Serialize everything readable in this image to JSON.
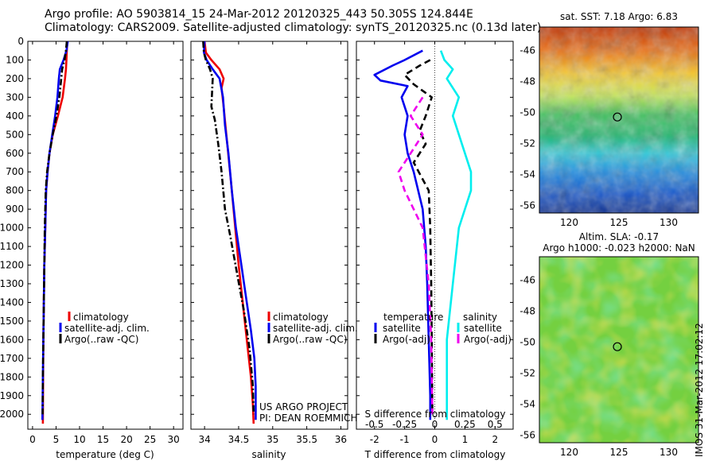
{
  "header": {
    "line1": "Argo profile: AO 5903814_15 24-Mar-2012 20120325_443 50.305S 124.844E",
    "line2": "Climatology: CARS2009. Satellite-adjusted climatology: synTS_20120325.nc (0.13d later)"
  },
  "colors": {
    "climatology": "#ee0000",
    "satellite": "#0000ee",
    "argo": "#000000",
    "sat_salinity": "#00eeee",
    "argo_salinity": "#ee00ee"
  },
  "chart_data": [
    {
      "type": "line",
      "panel": "temperature",
      "xlabel": "temperature (deg C)",
      "ylabel": "",
      "xlim": [
        -1,
        32
      ],
      "ylim": [
        2080,
        0
      ],
      "xticks": [
        "0",
        "5",
        "10",
        "15",
        "20",
        "25",
        "30"
      ],
      "yticks": [
        "0",
        "100",
        "200",
        "300",
        "400",
        "500",
        "600",
        "700",
        "800",
        "900",
        "1000",
        "1100",
        "1200",
        "1300",
        "1400",
        "1500",
        "1600",
        "1700",
        "1800",
        "1900",
        "2000"
      ],
      "legend": [
        "climatology",
        "satellite-adj. clim.",
        "Argo(..raw -QC)"
      ],
      "series": [
        {
          "name": "climatology",
          "style": "solid",
          "color": "#ee0000",
          "x": [
            7.4,
            7.3,
            7.2,
            7.1,
            6.9,
            6.4,
            5.4,
            4.3,
            3.6,
            3.2,
            2.9,
            2.7,
            2.5,
            2.4,
            2.3,
            2.25,
            2.2
          ],
          "y": [
            0,
            50,
            100,
            150,
            200,
            300,
            400,
            500,
            600,
            700,
            800,
            1000,
            1200,
            1400,
            1600,
            1800,
            2050
          ]
        },
        {
          "name": "satellite-adj. clim.",
          "style": "solid",
          "color": "#0000ee",
          "x": [
            7.5,
            7.2,
            6.6,
            5.8,
            5.6,
            5.3,
            4.8,
            4.2,
            3.6,
            3.2,
            2.9,
            2.7,
            2.5,
            2.4,
            2.3,
            2.2,
            2.1
          ],
          "y": [
            0,
            50,
            100,
            150,
            200,
            300,
            400,
            500,
            600,
            700,
            800,
            1000,
            1200,
            1400,
            1600,
            1800,
            2030
          ]
        },
        {
          "name": "Argo(..raw -QC)",
          "style": "dashdot",
          "color": "#000000",
          "x": [
            7.3,
            7.1,
            6.8,
            6.3,
            6.1,
            5.7,
            5.1,
            4.3,
            3.6,
            3.1,
            2.8,
            2.6,
            2.5,
            2.4,
            2.3,
            2.2,
            2.15
          ],
          "y": [
            0,
            50,
            100,
            150,
            200,
            300,
            400,
            500,
            600,
            700,
            800,
            1000,
            1200,
            1400,
            1600,
            1800,
            2000
          ]
        }
      ]
    },
    {
      "type": "line",
      "panel": "salinity",
      "xlabel": "salinity",
      "ylabel": "",
      "xlim": [
        33.8,
        36.1
      ],
      "ylim": [
        2080,
        0
      ],
      "xticks": [
        "34",
        "34.5",
        "35",
        "35.5",
        "36"
      ],
      "legend": [
        "climatology",
        "satellite-adj. clim.",
        "Argo(..raw -QC)"
      ],
      "annotation": [
        "US ARGO PROJECT",
        "PI: DEAN ROEMMICH"
      ],
      "series": [
        {
          "name": "climatology",
          "style": "solid",
          "color": "#ee0000",
          "x": [
            34.0,
            34.02,
            34.1,
            34.22,
            34.28,
            34.25,
            34.28,
            34.32,
            34.36,
            34.4,
            34.45,
            34.5,
            34.56,
            34.62,
            34.68,
            34.71,
            34.72
          ],
          "y": [
            0,
            60,
            100,
            150,
            200,
            250,
            350,
            500,
            650,
            800,
            1000,
            1200,
            1400,
            1600,
            1800,
            1950,
            2050
          ]
        },
        {
          "name": "satellite-adj. clim.",
          "style": "solid",
          "color": "#0000ee",
          "x": [
            34.0,
            33.99,
            34.03,
            34.12,
            34.22,
            34.27,
            34.3,
            34.35,
            34.4,
            34.46,
            34.54,
            34.62,
            34.68,
            34.73,
            34.75,
            34.75
          ],
          "y": [
            0,
            60,
            100,
            150,
            200,
            300,
            450,
            600,
            800,
            1000,
            1200,
            1400,
            1550,
            1700,
            1850,
            2030
          ]
        },
        {
          "name": "Argo(..raw -QC)",
          "style": "dashdot",
          "color": "#000000",
          "x": [
            33.98,
            33.99,
            34.02,
            34.08,
            34.12,
            34.1,
            34.15,
            34.2,
            34.25,
            34.3,
            34.38,
            34.48,
            34.58,
            34.66,
            34.71,
            34.72
          ],
          "y": [
            0,
            60,
            100,
            150,
            200,
            350,
            420,
            550,
            700,
            900,
            1050,
            1250,
            1450,
            1650,
            1850,
            2000
          ]
        }
      ]
    },
    {
      "type": "line",
      "panel": "difference",
      "xlabel": "T difference from climatology",
      "top_xlabel": "S difference from climatology",
      "xlim": [
        -2.6,
        2.6
      ],
      "ylim": [
        2080,
        0
      ],
      "xticks": [
        "-2",
        "-1",
        "0",
        "1",
        "2"
      ],
      "top_xticks": [
        "-0.5",
        "-0.25",
        "0",
        "0.25",
        "0.5"
      ],
      "legend_titles": [
        "temperature",
        "salinity"
      ],
      "legend": [
        "satellite",
        "Argo(-adj)",
        "satellite",
        "Argo(-adj)"
      ],
      "series": [
        {
          "name": "satellite",
          "group": "temperature",
          "style": "solid",
          "color": "#0000ee",
          "x": [
            -0.4,
            -1.0,
            -1.4,
            -2.0,
            -1.8,
            -0.9,
            -1.1,
            -0.9,
            -1.0,
            -0.9,
            -0.7,
            -0.4,
            -0.3,
            -0.25,
            -0.2,
            -0.15,
            -0.15
          ],
          "y": [
            50,
            100,
            130,
            180,
            210,
            240,
            300,
            400,
            500,
            600,
            700,
            900,
            1100,
            1300,
            1600,
            1900,
            2030
          ]
        },
        {
          "name": "Argo(-adj)",
          "group": "temperature",
          "style": "dashed",
          "color": "#000000",
          "x": [
            -0.15,
            -0.5,
            -1.0,
            -0.7,
            -0.1,
            -0.3,
            -0.5,
            -0.3,
            -0.7,
            -0.2,
            -0.15,
            -0.12,
            -0.1,
            -0.08
          ],
          "y": [
            100,
            130,
            180,
            230,
            300,
            400,
            480,
            550,
            650,
            800,
            1000,
            1300,
            1600,
            2000
          ]
        },
        {
          "name": "satellite",
          "group": "salinity",
          "style": "solid",
          "color": "#00eeee",
          "x": [
            0.05,
            0.08,
            0.15,
            0.1,
            0.2,
            0.15,
            0.2,
            0.25,
            0.3,
            0.3,
            0.2,
            0.15,
            0.1,
            0.1,
            0.1
          ],
          "y": [
            50,
            100,
            150,
            200,
            300,
            400,
            500,
            600,
            700,
            800,
            1000,
            1300,
            1600,
            1900,
            2030
          ]
        },
        {
          "name": "Argo(-adj)",
          "group": "salinity",
          "style": "dashed",
          "color": "#ee00ee",
          "x": [
            -0.1,
            -0.2,
            -0.1,
            -0.2,
            -0.3,
            -0.25,
            -0.1,
            -0.05,
            -0.03,
            -0.02
          ],
          "y": [
            300,
            400,
            500,
            600,
            700,
            800,
            1000,
            1300,
            1600,
            2000
          ]
        }
      ]
    },
    {
      "type": "heatmap",
      "panel": "sst-map",
      "title": "sat. SST: 7.18 Argo: 6.83",
      "xticks": [
        "120",
        "125",
        "130"
      ],
      "yticks": [
        "-46",
        "-48",
        "-50",
        "-52",
        "-54",
        "-56"
      ],
      "xlim": [
        117,
        133
      ],
      "ylim": [
        -56.5,
        -44.5
      ],
      "marker": {
        "lon": 124.844,
        "lat": -50.305
      }
    },
    {
      "type": "heatmap",
      "panel": "sla-map",
      "title": "Altim. SLA: -0.17",
      "subtitle": "Argo h1000: -0.023 h2000: NaN",
      "xticks": [
        "120",
        "125",
        "130"
      ],
      "yticks": [
        "-46",
        "-48",
        "-50",
        "-52",
        "-54",
        "-56"
      ],
      "xlim": [
        117,
        133
      ],
      "ylim": [
        -56.5,
        -44.5
      ],
      "marker": {
        "lon": 124.844,
        "lat": -50.305
      }
    }
  ],
  "side_note": "IMOS 31-Mar-2012 17:02:12"
}
